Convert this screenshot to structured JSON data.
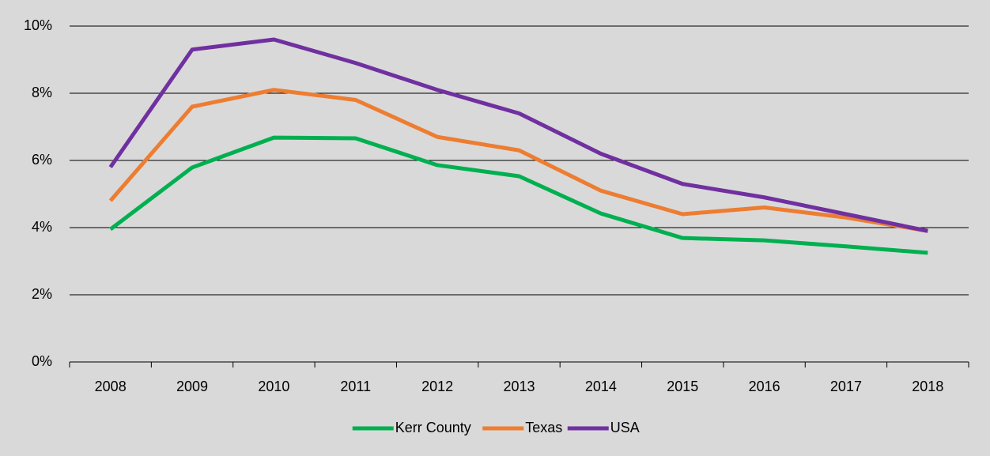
{
  "chart_data": {
    "type": "line",
    "categories": [
      "2008",
      "2009",
      "2010",
      "2011",
      "2012",
      "2013",
      "2014",
      "2015",
      "2016",
      "2017",
      "2018"
    ],
    "series": [
      {
        "name": "Kerr County",
        "color": "#00b050",
        "values": [
          3.95,
          5.79,
          6.68,
          6.66,
          5.86,
          5.53,
          4.42,
          3.69,
          3.62,
          3.44,
          3.25
        ]
      },
      {
        "name": "Texas",
        "color": "#ed7d31",
        "values": [
          4.8,
          7.6,
          8.1,
          7.8,
          6.7,
          6.3,
          5.1,
          4.4,
          4.6,
          4.3,
          3.9
        ]
      },
      {
        "name": "USA",
        "color": "#7030a0",
        "values": [
          5.8,
          9.3,
          9.6,
          8.9,
          8.1,
          7.4,
          6.2,
          5.3,
          4.9,
          4.4,
          3.9
        ]
      }
    ],
    "ylim": [
      0,
      10
    ],
    "yticks": [
      {
        "value": 0,
        "label": "0%"
      },
      {
        "value": 2,
        "label": "2%"
      },
      {
        "value": 4,
        "label": "4%"
      },
      {
        "value": 6,
        "label": "6%"
      },
      {
        "value": 8,
        "label": "8%"
      },
      {
        "value": 10,
        "label": "10%"
      }
    ],
    "grid": true,
    "legend": "bottom"
  }
}
